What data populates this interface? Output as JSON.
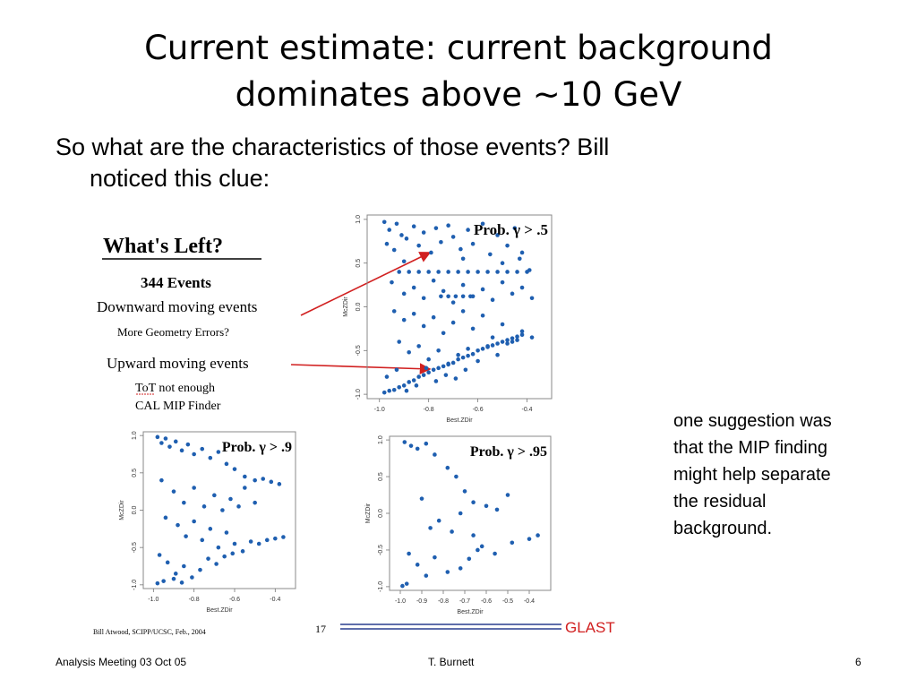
{
  "slide": {
    "title_line1": "Current estimate: current background",
    "title_line2": "dominates above ~10 GeV",
    "bullet_line1": "So what are the characteristics of those events? Bill",
    "bullet_line2": "noticed  this clue:",
    "side_note": [
      "one suggestion was",
      "that the MIP finding",
      "might help separate",
      "the residual",
      "background."
    ]
  },
  "figure": {
    "heading": "What's Left?",
    "events": "344 Events",
    "downward": "Downward moving events",
    "geometry": "More Geometry Errors?",
    "upward": "Upward moving events",
    "tot": "ToT not enough",
    "calmip": "CAL MIP Finder",
    "credit": "Bill Atwood,  SCIPP/UCSC, Feb., 2004",
    "page_number": "17",
    "logo": "GLAST",
    "arrow_color": "#d12020"
  },
  "footer": {
    "left": "Analysis Meeting 03 Oct 05",
    "center": "T. Burnett",
    "right": "6"
  },
  "chart_data": [
    {
      "type": "scatter",
      "title": "Prob. γ > .5",
      "xlabel": "Best.ZDir",
      "ylabel": "McZDir",
      "xlim": [
        -1.05,
        -0.3
      ],
      "ylim": [
        -1.05,
        1.05
      ],
      "x_ticks": [
        "-1.0",
        "-0.8",
        "-0.6",
        "-0.4"
      ],
      "y_ticks": [
        "-1.0",
        "-0.5",
        "0.0",
        "0.5",
        "1.0"
      ],
      "point_color": "#1f5fb0",
      "points": [
        [
          -0.98,
          0.97
        ],
        [
          -0.96,
          0.88
        ],
        [
          -0.93,
          0.95
        ],
        [
          -0.91,
          0.82
        ],
        [
          -0.97,
          0.72
        ],
        [
          -0.94,
          0.65
        ],
        [
          -0.89,
          0.78
        ],
        [
          -0.86,
          0.92
        ],
        [
          -0.84,
          0.7
        ],
        [
          -0.82,
          0.85
        ],
        [
          -0.79,
          0.62
        ],
        [
          -0.77,
          0.9
        ],
        [
          -0.75,
          0.74
        ],
        [
          -0.72,
          0.93
        ],
        [
          -0.7,
          0.8
        ],
        [
          -0.67,
          0.66
        ],
        [
          -0.64,
          0.88
        ],
        [
          -0.62,
          0.72
        ],
        [
          -0.58,
          0.95
        ],
        [
          -0.55,
          0.6
        ],
        [
          -0.52,
          0.82
        ],
        [
          -0.48,
          0.7
        ],
        [
          -0.45,
          0.9
        ],
        [
          -0.42,
          0.62
        ],
        [
          -0.39,
          0.42
        ],
        [
          -0.92,
          0.4
        ],
        [
          -0.88,
          0.4
        ],
        [
          -0.84,
          0.4
        ],
        [
          -0.8,
          0.4
        ],
        [
          -0.76,
          0.4
        ],
        [
          -0.72,
          0.4
        ],
        [
          -0.68,
          0.4
        ],
        [
          -0.64,
          0.4
        ],
        [
          -0.6,
          0.4
        ],
        [
          -0.56,
          0.4
        ],
        [
          -0.52,
          0.4
        ],
        [
          -0.48,
          0.4
        ],
        [
          -0.44,
          0.4
        ],
        [
          -0.4,
          0.4
        ],
        [
          -0.9,
          0.52
        ],
        [
          -0.66,
          0.55
        ],
        [
          -0.5,
          0.5
        ],
        [
          -0.43,
          0.55
        ],
        [
          -0.95,
          0.28
        ],
        [
          -0.9,
          0.15
        ],
        [
          -0.86,
          0.22
        ],
        [
          -0.82,
          0.1
        ],
        [
          -0.78,
          0.3
        ],
        [
          -0.74,
          0.18
        ],
        [
          -0.7,
          0.05
        ],
        [
          -0.66,
          0.25
        ],
        [
          -0.62,
          0.12
        ],
        [
          -0.58,
          0.2
        ],
        [
          -0.54,
          0.08
        ],
        [
          -0.5,
          0.28
        ],
        [
          -0.46,
          0.15
        ],
        [
          -0.42,
          0.22
        ],
        [
          -0.38,
          0.1
        ],
        [
          -0.75,
          0.12
        ],
        [
          -0.72,
          0.12
        ],
        [
          -0.69,
          0.12
        ],
        [
          -0.66,
          0.12
        ],
        [
          -0.63,
          0.12
        ],
        [
          -0.94,
          -0.05
        ],
        [
          -0.9,
          -0.15
        ],
        [
          -0.86,
          -0.08
        ],
        [
          -0.82,
          -0.22
        ],
        [
          -0.78,
          -0.12
        ],
        [
          -0.74,
          -0.3
        ],
        [
          -0.7,
          -0.18
        ],
        [
          -0.66,
          -0.05
        ],
        [
          -0.62,
          -0.25
        ],
        [
          -0.58,
          -0.1
        ],
        [
          -0.54,
          -0.35
        ],
        [
          -0.5,
          -0.2
        ],
        [
          -0.46,
          -0.4
        ],
        [
          -0.42,
          -0.28
        ],
        [
          -0.38,
          -0.35
        ],
        [
          -0.92,
          -0.4
        ],
        [
          -0.88,
          -0.52
        ],
        [
          -0.84,
          -0.45
        ],
        [
          -0.8,
          -0.6
        ],
        [
          -0.76,
          -0.5
        ],
        [
          -0.72,
          -0.65
        ],
        [
          -0.68,
          -0.55
        ],
        [
          -0.64,
          -0.48
        ],
        [
          -0.6,
          -0.62
        ],
        [
          -0.56,
          -0.45
        ],
        [
          -0.52,
          -0.55
        ],
        [
          -0.48,
          -0.42
        ],
        [
          -0.44,
          -0.38
        ],
        [
          -0.98,
          -0.98
        ],
        [
          -0.96,
          -0.96
        ],
        [
          -0.94,
          -0.95
        ],
        [
          -0.92,
          -0.92
        ],
        [
          -0.9,
          -0.9
        ],
        [
          -0.88,
          -0.86
        ],
        [
          -0.86,
          -0.84
        ],
        [
          -0.84,
          -0.8
        ],
        [
          -0.82,
          -0.78
        ],
        [
          -0.8,
          -0.75
        ],
        [
          -0.78,
          -0.72
        ],
        [
          -0.76,
          -0.7
        ],
        [
          -0.74,
          -0.68
        ],
        [
          -0.72,
          -0.66
        ],
        [
          -0.7,
          -0.64
        ],
        [
          -0.68,
          -0.6
        ],
        [
          -0.66,
          -0.58
        ],
        [
          -0.64,
          -0.56
        ],
        [
          -0.62,
          -0.54
        ],
        [
          -0.6,
          -0.5
        ],
        [
          -0.58,
          -0.48
        ],
        [
          -0.56,
          -0.46
        ],
        [
          -0.54,
          -0.44
        ],
        [
          -0.52,
          -0.42
        ],
        [
          -0.5,
          -0.4
        ],
        [
          -0.48,
          -0.38
        ],
        [
          -0.46,
          -0.36
        ],
        [
          -0.44,
          -0.34
        ],
        [
          -0.42,
          -0.32
        ],
        [
          -0.97,
          -0.8
        ],
        [
          -0.93,
          -0.72
        ],
        [
          -0.89,
          -0.96
        ],
        [
          -0.85,
          -0.9
        ],
        [
          -0.81,
          -0.7
        ],
        [
          -0.77,
          -0.85
        ],
        [
          -0.73,
          -0.78
        ],
        [
          -0.69,
          -0.82
        ],
        [
          -0.65,
          -0.72
        ]
      ]
    },
    {
      "type": "scatter",
      "title": "Prob. γ > .9",
      "xlabel": "Best.ZDir",
      "ylabel": "McZDir",
      "xlim": [
        -1.05,
        -0.3
      ],
      "ylim": [
        -1.05,
        1.05
      ],
      "x_ticks": [
        "-1.0",
        "-0.8",
        "-0.6",
        "-0.4"
      ],
      "y_ticks": [
        "-1.0",
        "-0.5",
        "0.0",
        "0.5",
        "1.0"
      ],
      "point_color": "#1f5fb0",
      "points": [
        [
          -0.98,
          0.98
        ],
        [
          -0.96,
          0.9
        ],
        [
          -0.94,
          0.96
        ],
        [
          -0.92,
          0.85
        ],
        [
          -0.89,
          0.92
        ],
        [
          -0.86,
          0.8
        ],
        [
          -0.83,
          0.88
        ],
        [
          -0.8,
          0.75
        ],
        [
          -0.76,
          0.82
        ],
        [
          -0.72,
          0.7
        ],
        [
          -0.68,
          0.78
        ],
        [
          -0.64,
          0.62
        ],
        [
          -0.6,
          0.55
        ],
        [
          -0.55,
          0.45
        ],
        [
          -0.5,
          0.4
        ],
        [
          -0.46,
          0.42
        ],
        [
          -0.42,
          0.38
        ],
        [
          -0.38,
          0.35
        ],
        [
          -0.96,
          0.4
        ],
        [
          -0.9,
          0.25
        ],
        [
          -0.85,
          0.1
        ],
        [
          -0.8,
          0.3
        ],
        [
          -0.75,
          0.05
        ],
        [
          -0.7,
          0.2
        ],
        [
          -0.66,
          0.0
        ],
        [
          -0.62,
          0.15
        ],
        [
          -0.58,
          0.05
        ],
        [
          -0.55,
          0.3
        ],
        [
          -0.5,
          0.1
        ],
        [
          -0.94,
          -0.1
        ],
        [
          -0.88,
          -0.2
        ],
        [
          -0.84,
          -0.35
        ],
        [
          -0.8,
          -0.15
        ],
        [
          -0.76,
          -0.4
        ],
        [
          -0.72,
          -0.25
        ],
        [
          -0.68,
          -0.5
        ],
        [
          -0.64,
          -0.3
        ],
        [
          -0.6,
          -0.45
        ],
        [
          -0.56,
          -0.55
        ],
        [
          -0.52,
          -0.42
        ],
        [
          -0.48,
          -0.45
        ],
        [
          -0.44,
          -0.4
        ],
        [
          -0.4,
          -0.38
        ],
        [
          -0.36,
          -0.36
        ],
        [
          -0.97,
          -0.6
        ],
        [
          -0.93,
          -0.7
        ],
        [
          -0.89,
          -0.85
        ],
        [
          -0.85,
          -0.75
        ],
        [
          -0.81,
          -0.9
        ],
        [
          -0.77,
          -0.8
        ],
        [
          -0.73,
          -0.65
        ],
        [
          -0.69,
          -0.72
        ],
        [
          -0.65,
          -0.62
        ],
        [
          -0.61,
          -0.58
        ],
        [
          -0.98,
          -0.98
        ],
        [
          -0.95,
          -0.95
        ],
        [
          -0.9,
          -0.92
        ],
        [
          -0.86,
          -0.97
        ]
      ]
    },
    {
      "type": "scatter",
      "title": "Prob. γ > .95",
      "xlabel": "Best.ZDir",
      "ylabel": "McZDir",
      "xlim": [
        -1.05,
        -0.3
      ],
      "ylim": [
        -1.05,
        1.05
      ],
      "x_ticks": [
        "-1.0",
        "-0.9",
        "-0.8",
        "-0.7",
        "-0.6",
        "-0.5",
        "-0.4"
      ],
      "y_ticks": [
        "-1.0",
        "-0.5",
        "0.0",
        "0.5",
        "1.0"
      ],
      "point_color": "#1f5fb0",
      "points": [
        [
          -0.98,
          0.97
        ],
        [
          -0.95,
          0.92
        ],
        [
          -0.92,
          0.88
        ],
        [
          -0.88,
          0.95
        ],
        [
          -0.84,
          0.8
        ],
        [
          -0.78,
          0.62
        ],
        [
          -0.74,
          0.5
        ],
        [
          -0.7,
          0.3
        ],
        [
          -0.66,
          0.15
        ],
        [
          -0.6,
          0.1
        ],
        [
          -0.55,
          0.05
        ],
        [
          -0.5,
          0.25
        ],
        [
          -0.9,
          0.2
        ],
        [
          -0.86,
          -0.2
        ],
        [
          -0.82,
          -0.1
        ],
        [
          -0.76,
          -0.25
        ],
        [
          -0.72,
          0.0
        ],
        [
          -0.66,
          -0.3
        ],
        [
          -0.62,
          -0.45
        ],
        [
          -0.56,
          -0.55
        ],
        [
          -0.48,
          -0.4
        ],
        [
          -0.4,
          -0.35
        ],
        [
          -0.36,
          -0.3
        ],
        [
          -0.96,
          -0.55
        ],
        [
          -0.92,
          -0.7
        ],
        [
          -0.88,
          -0.85
        ],
        [
          -0.84,
          -0.6
        ],
        [
          -0.78,
          -0.8
        ],
        [
          -0.72,
          -0.75
        ],
        [
          -0.68,
          -0.62
        ],
        [
          -0.64,
          -0.5
        ],
        [
          -0.99,
          -0.99
        ],
        [
          -0.97,
          -0.96
        ]
      ]
    }
  ]
}
